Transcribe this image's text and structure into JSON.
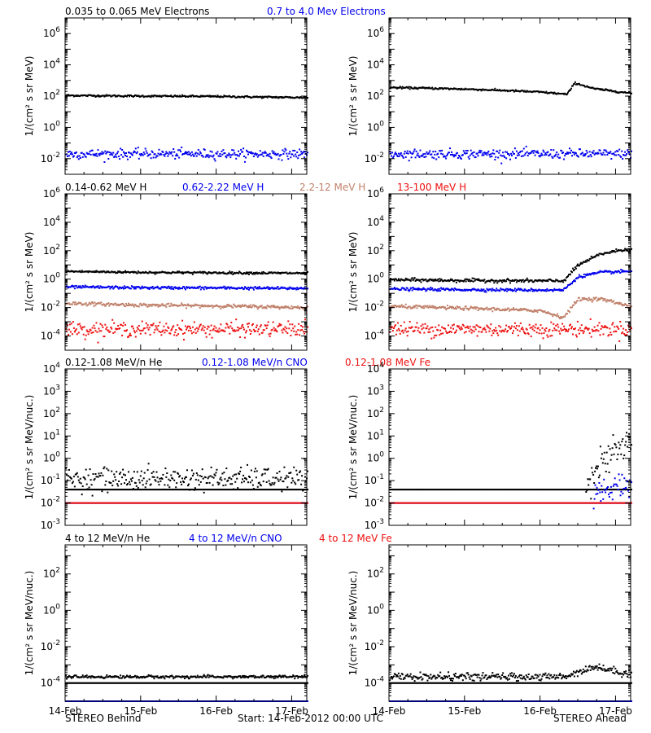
{
  "colors": {
    "black": "#000000",
    "blue": "#0000ee",
    "tan": "#c0806a",
    "red": "#ee1111",
    "axis": "#000000"
  },
  "footer": {
    "left": "STEREO Behind",
    "center": "Start: 14-Feb-2012 00:00 UTC",
    "right": "STEREO Ahead"
  },
  "x_ticks": [
    "14-Feb",
    "15-Feb",
    "16-Feb",
    "17-Feb"
  ],
  "chart_data": [
    {
      "type": "scatter",
      "row": 0,
      "spacecraft": "STEREO Behind",
      "ylabel": "1/(cm² s sr MeV)",
      "yscale": "log",
      "ylim_exp": [
        -3,
        7
      ],
      "yticks": [
        "10^-2",
        "10^0",
        "10^2",
        "10^4",
        "10^6"
      ],
      "xlim_days": [
        0,
        3.2
      ],
      "series": [
        {
          "name": "0.035 to 0.065 MeV Electrons",
          "color": "#000000",
          "points": [
            [
              0,
              110
            ],
            [
              0.5,
              105
            ],
            [
              1,
              100
            ],
            [
              1.5,
              98
            ],
            [
              2,
              95
            ],
            [
              2.5,
              88
            ],
            [
              3.2,
              80
            ]
          ],
          "scatter": 0.03
        },
        {
          "name": "0.7 to 4.0 Mev Electrons",
          "color": "#0000ee",
          "points": [
            [
              0,
              0.02
            ],
            [
              1,
              0.02
            ],
            [
              2,
              0.02
            ],
            [
              3.2,
              0.02
            ]
          ],
          "scatter": 0.15
        }
      ]
    },
    {
      "type": "scatter",
      "row": 0,
      "spacecraft": "STEREO Ahead",
      "ylabel": "1/(cm² s sr MeV)",
      "yscale": "log",
      "ylim_exp": [
        -3,
        7
      ],
      "yticks": [
        "10^-2",
        "10^0",
        "10^2",
        "10^4",
        "10^6"
      ],
      "xlim_days": [
        0,
        3.2
      ],
      "series": [
        {
          "name": "0.035 to 0.065 MeV Electrons",
          "color": "#000000",
          "points": [
            [
              0,
              350
            ],
            [
              0.5,
              320
            ],
            [
              1,
              280
            ],
            [
              1.5,
              230
            ],
            [
              2,
              180
            ],
            [
              2.35,
              130
            ],
            [
              2.45,
              700
            ],
            [
              2.55,
              500
            ],
            [
              2.7,
              300
            ],
            [
              3.2,
              150
            ]
          ],
          "scatter": 0.03
        },
        {
          "name": "0.7 to 4.0 Mev Electrons",
          "color": "#0000ee",
          "points": [
            [
              0,
              0.02
            ],
            [
              1,
              0.02
            ],
            [
              2,
              0.02
            ],
            [
              3.2,
              0.02
            ]
          ],
          "scatter": 0.15
        }
      ]
    },
    {
      "type": "scatter",
      "row": 1,
      "spacecraft": "STEREO Behind",
      "ylabel": "1/(cm² s sr MeV)",
      "yscale": "log",
      "ylim_exp": [
        -5,
        6
      ],
      "yticks": [
        "10^-4",
        "10^-2",
        "10^0",
        "10^2",
        "10^4",
        "10^6"
      ],
      "xlim_days": [
        0,
        3.2
      ],
      "series": [
        {
          "name": "0.14-0.62 MeV H",
          "color": "#000000",
          "points": [
            [
              0,
              3.5
            ],
            [
              1,
              3
            ],
            [
              2,
              2.8
            ],
            [
              3.2,
              2.6
            ]
          ],
          "scatter": 0.04
        },
        {
          "name": "0.62-2.22 MeV H",
          "color": "#0000ee",
          "points": [
            [
              0,
              0.28
            ],
            [
              1,
              0.25
            ],
            [
              2,
              0.24
            ],
            [
              3.2,
              0.22
            ]
          ],
          "scatter": 0.05
        },
        {
          "name": "2.2-12 MeV H",
          "color": "#c0806a",
          "points": [
            [
              0,
              0.02
            ],
            [
              1,
              0.015
            ],
            [
              2,
              0.013
            ],
            [
              3.2,
              0.01
            ]
          ],
          "scatter": 0.06
        },
        {
          "name": "13-100 MeV H",
          "color": "#ee1111",
          "points": [
            [
              0,
              0.0003
            ],
            [
              1,
              0.0003
            ],
            [
              2,
              0.0003
            ],
            [
              3.2,
              0.0003
            ]
          ],
          "scatter": 0.25
        }
      ]
    },
    {
      "type": "scatter",
      "row": 1,
      "spacecraft": "STEREO Ahead",
      "ylabel": "1/(cm² s sr MeV)",
      "yscale": "log",
      "ylim_exp": [
        -5,
        6
      ],
      "yticks": [
        "10^-4",
        "10^-2",
        "10^0",
        "10^2",
        "10^4",
        "10^6"
      ],
      "xlim_days": [
        0,
        3.2
      ],
      "series": [
        {
          "name": "0.14-0.62 MeV H",
          "color": "#000000",
          "points": [
            [
              0,
              0.9
            ],
            [
              1,
              0.8
            ],
            [
              2,
              0.75
            ],
            [
              2.3,
              0.75
            ],
            [
              2.5,
              10
            ],
            [
              2.8,
              60
            ],
            [
              3.2,
              150
            ]
          ],
          "scatter": 0.06
        },
        {
          "name": "0.62-2.22 MeV H",
          "color": "#0000ee",
          "points": [
            [
              0,
              0.2
            ],
            [
              1,
              0.18
            ],
            [
              2,
              0.17
            ],
            [
              2.3,
              0.17
            ],
            [
              2.5,
              1.5
            ],
            [
              2.8,
              3
            ],
            [
              3.2,
              3.5
            ]
          ],
          "scatter": 0.05
        },
        {
          "name": "2.2-12 MeV H",
          "color": "#c0806a",
          "points": [
            [
              0,
              0.012
            ],
            [
              1,
              0.009
            ],
            [
              2,
              0.006
            ],
            [
              2.3,
              0.002
            ],
            [
              2.5,
              0.04
            ],
            [
              2.8,
              0.04
            ],
            [
              3.2,
              0.012
            ]
          ],
          "scatter": 0.06
        },
        {
          "name": "13-100 MeV H",
          "color": "#ee1111",
          "points": [
            [
              0,
              0.0003
            ],
            [
              1,
              0.0003
            ],
            [
              2,
              0.0003
            ],
            [
              3.2,
              0.0003
            ]
          ],
          "scatter": 0.25
        }
      ]
    },
    {
      "type": "scatter",
      "row": 2,
      "spacecraft": "STEREO Behind",
      "ylabel": "1/(cm² s sr MeV/nuc.)",
      "yscale": "log",
      "ylim_exp": [
        -3,
        4
      ],
      "yticks": [
        "10^-3",
        "10^-2",
        "10^-1",
        "10^0",
        "10^1",
        "10^2",
        "10^3",
        "10^4"
      ],
      "xlim_days": [
        0,
        3.2
      ],
      "series": [
        {
          "name": "0.12-1.08 MeV/n He",
          "color": "#000000",
          "points": [
            [
              0,
              0.04
            ],
            [
              3.2,
              0.04
            ]
          ],
          "scatter": 0.0,
          "extra": [
            [
              0,
              0.12
            ],
            [
              3.2,
              0.12
            ]
          ],
          "extra_scatter": 0.25
        },
        {
          "name": "0.12-1.08 MeV/n CNO",
          "color": "#0000ee",
          "points": [
            [
              0,
              0.01
            ],
            [
              3.2,
              0.01
            ]
          ],
          "scatter": 0.0
        },
        {
          "name": "0.12-1.08 MeV Fe",
          "color": "#ee1111",
          "points": [
            [
              0,
              0.01
            ],
            [
              3.2,
              0.01
            ]
          ],
          "scatter": 0.0
        }
      ]
    },
    {
      "type": "scatter",
      "row": 2,
      "spacecraft": "STEREO Ahead",
      "ylabel": "1/(cm² s sr MeV/nuc.)",
      "yscale": "log",
      "ylim_exp": [
        -3,
        4
      ],
      "yticks": [
        "10^-3",
        "10^-2",
        "10^-1",
        "10^0",
        "10^1",
        "10^2",
        "10^3",
        "10^4"
      ],
      "xlim_days": [
        0,
        3.2
      ],
      "series": [
        {
          "name": "0.12-1.08 MeV/n He",
          "color": "#000000",
          "points": [
            [
              0,
              0.04
            ],
            [
              3.2,
              0.04
            ]
          ],
          "scatter": 0.0,
          "extra": [
            [
              2.6,
              0.1
            ],
            [
              2.8,
              0.5
            ],
            [
              3.0,
              2
            ],
            [
              3.2,
              6
            ]
          ],
          "extra_scatter": 0.35
        },
        {
          "name": "0.12-1.08 MeV/n CNO",
          "color": "#0000ee",
          "points": [
            [
              0,
              0.01
            ],
            [
              3.2,
              0.01
            ]
          ],
          "scatter": 0.0,
          "extra": [
            [
              2.7,
              0.02
            ],
            [
              3.2,
              0.1
            ]
          ],
          "extra_scatter": 0.3
        },
        {
          "name": "0.12-1.08 MeV Fe",
          "color": "#ee1111",
          "points": [
            [
              0,
              0.01
            ],
            [
              3.2,
              0.01
            ]
          ],
          "scatter": 0.0
        }
      ]
    },
    {
      "type": "scatter",
      "row": 3,
      "spacecraft": "STEREO Behind",
      "ylabel": "1/(cm² s sr MeV/nuc.)",
      "yscale": "log",
      "ylim_exp": [
        -5,
        3.6
      ],
      "yticks": [
        "10^-4",
        "10^-2",
        "10^0",
        "10^2"
      ],
      "xlim_days": [
        0,
        3.2
      ],
      "series": [
        {
          "name": "4 to 12 MeV/n He",
          "color": "#000000",
          "points": [
            [
              0,
              0.0001
            ],
            [
              3.2,
              0.0001
            ]
          ],
          "scatter": 0.0,
          "extra": [
            [
              0,
              0.00022
            ],
            [
              3.2,
              0.00022
            ]
          ],
          "extra_scatter": 0.04
        },
        {
          "name": "4 to 12 MeV/n CNO",
          "color": "#0000ee",
          "points": [
            [
              0,
              1e-05
            ],
            [
              3.2,
              1e-05
            ]
          ],
          "scatter": 0.0
        },
        {
          "name": "4 to 12 MeV Fe",
          "color": "#ee1111",
          "points": [],
          "scatter": 0.0
        }
      ]
    },
    {
      "type": "scatter",
      "row": 3,
      "spacecraft": "STEREO Ahead",
      "ylabel": "1/(cm² s sr MeV/nuc.)",
      "yscale": "log",
      "ylim_exp": [
        -5,
        3.6
      ],
      "yticks": [
        "10^-4",
        "10^-2",
        "10^0",
        "10^2"
      ],
      "xlim_days": [
        0,
        3.2
      ],
      "series": [
        {
          "name": "4 to 12 MeV/n He",
          "color": "#000000",
          "points": [
            [
              0,
              0.0001
            ],
            [
              3.2,
              0.0001
            ]
          ],
          "scatter": 0.0,
          "extra": [
            [
              0,
              0.00022
            ],
            [
              2.3,
              0.00022
            ],
            [
              2.7,
              0.0008
            ],
            [
              3.2,
              0.0003
            ]
          ],
          "extra_scatter": 0.1
        },
        {
          "name": "4 to 12 MeV/n CNO",
          "color": "#0000ee",
          "points": [
            [
              0,
              1e-05
            ],
            [
              3.2,
              1e-05
            ]
          ],
          "scatter": 0.0
        },
        {
          "name": "4 to 12 MeV Fe",
          "color": "#ee1111",
          "points": [],
          "scatter": 0.0
        }
      ]
    }
  ]
}
